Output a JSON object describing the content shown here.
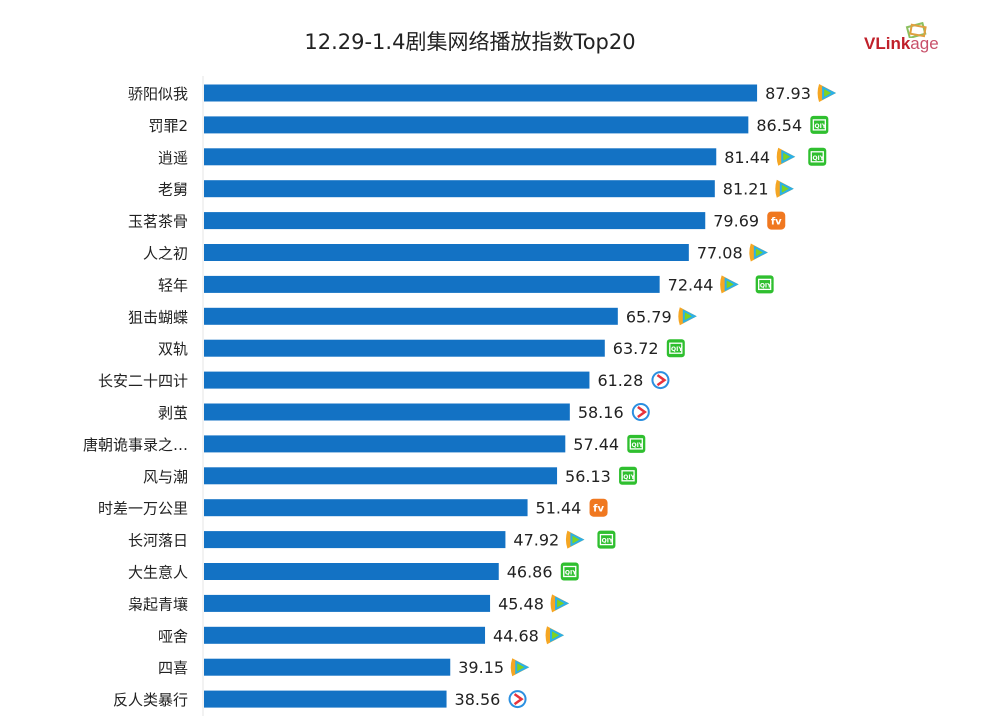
{
  "chart_data": {
    "type": "bar",
    "orientation": "horizontal",
    "title": "12.29-1.4剧集网络播放指数Top20",
    "categories": [
      "骄阳似我",
      "罚罪2",
      "逍遥",
      "老舅",
      "玉茗茶骨",
      "人之初",
      "轻年",
      "狙击蝴蝶",
      "双轨",
      "长安二十四计",
      "剥茧",
      "唐朝诡事录之…",
      "风与潮",
      "时差一万公里",
      "长河落日",
      "大生意人",
      "枭起青壤",
      "哑舍",
      "四喜",
      "反人类暴行"
    ],
    "values": [
      87.93,
      86.54,
      81.44,
      81.21,
      79.69,
      77.08,
      72.44,
      65.79,
      63.72,
      61.28,
      58.16,
      57.44,
      56.13,
      51.44,
      47.92,
      46.86,
      45.48,
      44.68,
      39.15,
      38.56
    ],
    "platforms": [
      [
        "tencent"
      ],
      [
        "iqiyi"
      ],
      [
        "tencent",
        "iqiyi"
      ],
      [
        "tencent"
      ],
      [
        "mango"
      ],
      [
        "tencent"
      ],
      [
        "tencent",
        "iqiyi"
      ],
      [
        "tencent"
      ],
      [
        "iqiyi"
      ],
      [
        "youku"
      ],
      [
        "youku"
      ],
      [
        "iqiyi"
      ],
      [
        "iqiyi"
      ],
      [
        "mango"
      ],
      [
        "tencent",
        "iqiyi"
      ],
      [
        "iqiyi"
      ],
      [
        "tencent"
      ],
      [
        "tencent"
      ],
      [
        "tencent"
      ],
      [
        "youku"
      ]
    ],
    "xlim": [
      0,
      100
    ],
    "grid": false,
    "bar_color": "#1372c4",
    "data_labels": true
  },
  "logo": {
    "text_bold": "VLink",
    "text_light": "age"
  }
}
